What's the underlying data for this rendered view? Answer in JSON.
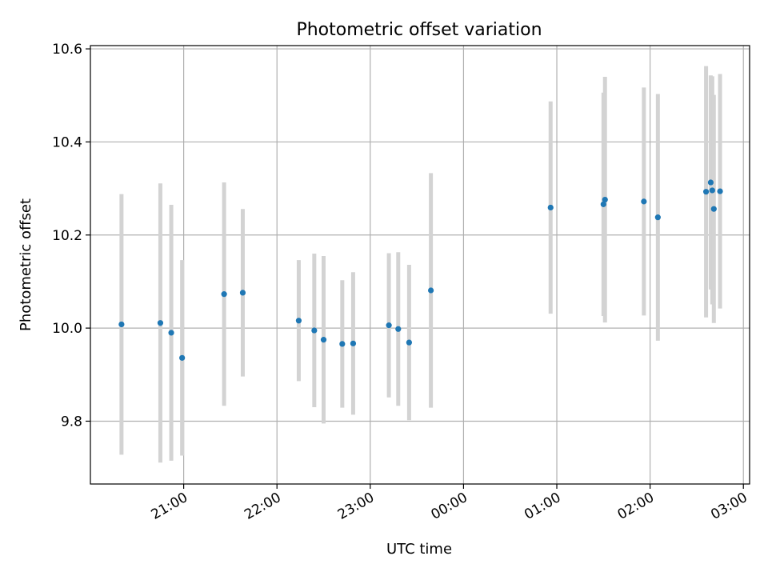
{
  "chart_data": {
    "type": "scatter",
    "title": "Photometric offset variation",
    "xlabel": "UTC time",
    "ylabel": "Photometric offset",
    "x_ticks": [
      "21:00",
      "22:00",
      "23:00",
      "00:00",
      "01:00",
      "02:00",
      "03:00"
    ],
    "y_ticks": [
      "9.8",
      "10.0",
      "10.2",
      "10.4",
      "10.6"
    ],
    "xlim": [
      "20:00",
      "03:04"
    ],
    "ylim": [
      9.665,
      10.607
    ],
    "grid": true,
    "marker_color": "#1f77b4",
    "errorbar_color": "#d3d3d3",
    "points": [
      {
        "t": "20:20",
        "y": 10.008,
        "err": 0.28
      },
      {
        "t": "20:45",
        "y": 10.011,
        "err": 0.3
      },
      {
        "t": "20:52",
        "y": 9.99,
        "err": 0.275
      },
      {
        "t": "20:59",
        "y": 9.936,
        "err": 0.21
      },
      {
        "t": "21:26",
        "y": 10.073,
        "err": 0.24
      },
      {
        "t": "21:38",
        "y": 10.076,
        "err": 0.18
      },
      {
        "t": "22:14",
        "y": 10.016,
        "err": 0.13
      },
      {
        "t": "22:24",
        "y": 9.995,
        "err": 0.165
      },
      {
        "t": "22:30",
        "y": 9.975,
        "err": 0.18
      },
      {
        "t": "22:42",
        "y": 9.966,
        "err": 0.137
      },
      {
        "t": "22:49",
        "y": 9.967,
        "err": 0.153
      },
      {
        "t": "23:12",
        "y": 10.006,
        "err": 0.155
      },
      {
        "t": "23:18",
        "y": 9.998,
        "err": 0.165
      },
      {
        "t": "23:25",
        "y": 9.969,
        "err": 0.167
      },
      {
        "t": "23:39",
        "y": 10.081,
        "err": 0.252
      },
      {
        "t": "00:56",
        "y": 10.259,
        "err": 0.228
      },
      {
        "t": "01:30",
        "y": 10.266,
        "err": 0.24
      },
      {
        "t": "01:31",
        "y": 10.276,
        "err": 0.264
      },
      {
        "t": "01:56",
        "y": 10.272,
        "err": 0.245
      },
      {
        "t": "02:05",
        "y": 10.238,
        "err": 0.265
      },
      {
        "t": "02:36",
        "y": 10.293,
        "err": 0.27
      },
      {
        "t": "02:39",
        "y": 10.313,
        "err": 0.23
      },
      {
        "t": "02:40",
        "y": 10.296,
        "err": 0.245
      },
      {
        "t": "02:41",
        "y": 10.256,
        "err": 0.245
      },
      {
        "t": "02:45",
        "y": 10.294,
        "err": 0.252
      }
    ]
  }
}
